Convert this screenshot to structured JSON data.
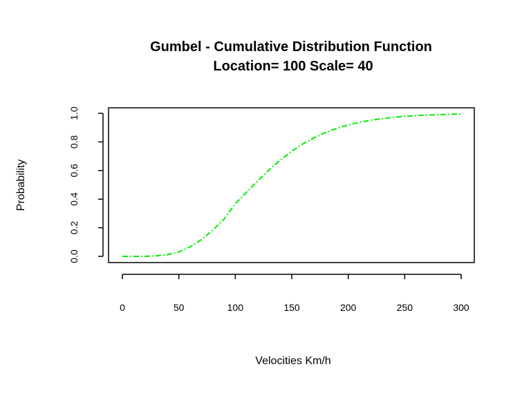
{
  "chart_data": {
    "type": "line",
    "title": "Gumbel - Cumulative Distribution Function",
    "subtitle": "Location= 100  Scale= 40",
    "xlabel": "Velocities Km/h",
    "ylabel": "Probability",
    "xlim": [
      0,
      300
    ],
    "ylim": [
      0,
      1
    ],
    "x_ticks": [
      0,
      50,
      100,
      150,
      200,
      250,
      300
    ],
    "y_ticks": [
      0.0,
      0.2,
      0.4,
      0.6,
      0.8,
      1.0
    ],
    "x_tick_labels": [
      "0",
      "50",
      "100",
      "150",
      "200",
      "250",
      "300"
    ],
    "y_tick_labels": [
      "0.0",
      "0.2",
      "0.4",
      "0.6",
      "0.8",
      "1.0"
    ],
    "grid": false,
    "line_style": "dashdot",
    "colors": {
      "series": "#00ee00",
      "axis": "#000000"
    },
    "series": [
      {
        "x": [
          0,
          10,
          20,
          30,
          40,
          50,
          60,
          70,
          80,
          90,
          100,
          110,
          120,
          130,
          140,
          150,
          160,
          170,
          180,
          190,
          200,
          210,
          220,
          230,
          240,
          250,
          260,
          270,
          280,
          290,
          300
        ],
        "values": [
          0.0,
          0.0,
          0.0,
          0.004,
          0.012,
          0.031,
          0.066,
          0.117,
          0.183,
          0.26,
          0.368,
          0.449,
          0.529,
          0.605,
          0.674,
          0.735,
          0.787,
          0.83,
          0.866,
          0.895,
          0.919,
          0.937,
          0.952,
          0.963,
          0.972,
          0.979,
          0.984,
          0.988,
          0.991,
          0.993,
          0.995
        ]
      }
    ]
  }
}
